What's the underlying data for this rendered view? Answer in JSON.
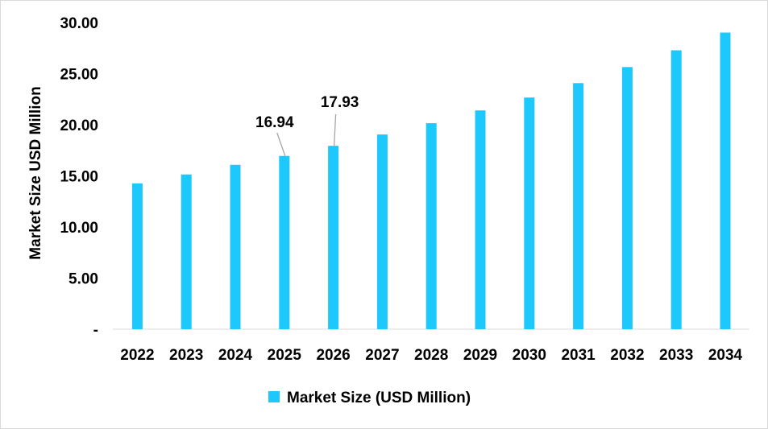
{
  "chart_data": {
    "type": "bar",
    "categories": [
      "2022",
      "2023",
      "2024",
      "2025",
      "2026",
      "2027",
      "2028",
      "2029",
      "2030",
      "2031",
      "2032",
      "2033",
      "2034"
    ],
    "series": [
      {
        "name": "Market Size (USD Million)",
        "values": [
          14.26,
          15.13,
          16.07,
          16.94,
          17.93,
          19.04,
          20.14,
          21.39,
          22.65,
          24.06,
          25.63,
          27.27,
          29.0
        ],
        "color": "#1cc8fc"
      }
    ],
    "data_labels": [
      {
        "category": "2025",
        "text": "16.94"
      },
      {
        "category": "2026",
        "text": "17.93"
      }
    ],
    "ylabel": "Market Size USD Million",
    "xlabel": "",
    "ylim": [
      0,
      30
    ],
    "yticks": [
      "-",
      "5.00",
      "10.00",
      "15.00",
      "20.00",
      "25.00",
      "30.00"
    ],
    "grid": false,
    "legend_position": "bottom"
  }
}
